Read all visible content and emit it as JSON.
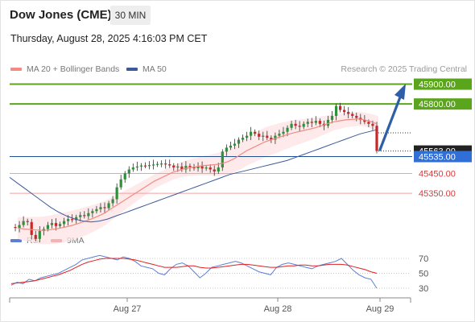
{
  "header": {
    "instrument": "Dow Jones (CME)",
    "timeframe": "30 MIN",
    "datetime": "Thursday, August 28, 2025 4:16:03 PM CET"
  },
  "legend": {
    "items": [
      {
        "label": "MA 20 + Bollinger Bands",
        "color": "#f28b82"
      },
      {
        "label": "MA 50",
        "color": "#3c5a99"
      }
    ],
    "credit": "Research © 2025 Trading Central"
  },
  "levels": [
    {
      "value": "45900.00",
      "kind": "target",
      "color": "#5aa51b"
    },
    {
      "value": "45800.00",
      "kind": "target",
      "color": "#5aa51b"
    },
    {
      "value": "45563.00",
      "kind": "last-price",
      "color": "#333333"
    },
    {
      "value": "45535.00",
      "kind": "pivot",
      "color": "#2f6fd6"
    },
    {
      "value": "45450.00",
      "kind": "support",
      "color": "#d93a3a"
    },
    {
      "value": "45350.00",
      "kind": "support",
      "color": "#d93a3a"
    }
  ],
  "rsi": {
    "legend": [
      {
        "label": "RSI",
        "color": "#5b7fd6"
      },
      {
        "label": "9MA",
        "color": "#e02020"
      }
    ],
    "ticks": [
      "70",
      "50",
      "30"
    ]
  },
  "xaxis": {
    "labels": [
      "Aug 27",
      "Aug 28",
      "Aug 29"
    ]
  },
  "chart_data": {
    "type": "candlestick",
    "price_levels": [
      45900,
      45800,
      45563,
      45535,
      45450,
      45350
    ],
    "price_range": [
      45130,
      45930
    ],
    "last_price": 45563,
    "x_labels": [
      "Aug 27",
      "Aug 28",
      "Aug 29"
    ],
    "close_series": [
      45180,
      45175,
      45190,
      45210,
      45205,
      45140,
      45120,
      45160,
      45170,
      45190,
      45200,
      45185,
      45195,
      45210,
      45220,
      45215,
      45230,
      45240,
      45235,
      45250,
      45260,
      45270,
      45280,
      45275,
      45300,
      45320,
      45380,
      45420,
      45450,
      45470,
      45480,
      45485,
      45490,
      45488,
      45492,
      45495,
      45498,
      45500,
      45496,
      45490,
      45480,
      45485,
      45470,
      45488,
      45482,
      45476,
      45486,
      45475,
      45480,
      45470,
      45460,
      45480,
      45560,
      45580,
      45590,
      45600,
      45620,
      45630,
      45640,
      45660,
      45650,
      45635,
      45640,
      45630,
      45620,
      45640,
      45650,
      45660,
      45680,
      45700,
      45690,
      45685,
      45700,
      45710,
      45705,
      45715,
      45700,
      45690,
      45720,
      45740,
      45790,
      45770,
      45760,
      45750,
      45740,
      45730,
      45720,
      45710,
      45700,
      45690,
      45563
    ],
    "ma20_series": [
      45175,
      45170,
      45168,
      45165,
      45163,
      45165,
      45170,
      45175,
      45182,
      45190,
      45200,
      45210,
      45222,
      45235,
      45250,
      45270,
      45290,
      45310,
      45330,
      45350,
      45370,
      45390,
      45410,
      45425,
      45440,
      45455,
      45465,
      45475,
      45480,
      45485,
      45490,
      45492,
      45495,
      45500,
      45510,
      45525,
      45545,
      45565,
      45580,
      45595,
      45610,
      45620,
      45630,
      45640,
      45650,
      45658,
      45665,
      45672,
      45680,
      45690,
      45700,
      45710,
      45715,
      45720,
      45722,
      45725,
      45720,
      45712,
      45700
    ],
    "ma50_series": [
      45430,
      45400,
      45370,
      45340,
      45310,
      45280,
      45255,
      45235,
      45220,
      45210,
      45205,
      45210,
      45220,
      45235,
      45250,
      45265,
      45280,
      45295,
      45310,
      45325,
      45340,
      45355,
      45370,
      45385,
      45400,
      45415,
      45430,
      45445,
      45455,
      45465,
      45475,
      45485,
      45495,
      45505,
      45515,
      45530,
      45545,
      45560,
      45575,
      45590,
      45605,
      45620,
      45635,
      45650,
      45660,
      45670
    ],
    "rsi_series": [
      34,
      38,
      36,
      42,
      40,
      44,
      46,
      48,
      50,
      54,
      58,
      62,
      68,
      70,
      72,
      74,
      72,
      70,
      68,
      72,
      70,
      66,
      60,
      58,
      56,
      50,
      48,
      56,
      62,
      64,
      60,
      52,
      44,
      50,
      58,
      60,
      62,
      64,
      66,
      64,
      60,
      56,
      52,
      50,
      48,
      58,
      62,
      64,
      62,
      60,
      58,
      56,
      60,
      62,
      64,
      66,
      70,
      62,
      54,
      48,
      44,
      42,
      30
    ],
    "rsi_ma_series": [
      36,
      37,
      38,
      39,
      40,
      42,
      44,
      46,
      48,
      51,
      54,
      58,
      62,
      65,
      67,
      69,
      70,
      70,
      70,
      70,
      69,
      68,
      66,
      64,
      62,
      60,
      58,
      58,
      58,
      59,
      60,
      60,
      58,
      57,
      57,
      58,
      59,
      60,
      61,
      62,
      62,
      61,
      60,
      59,
      58,
      58,
      59,
      60,
      60,
      61,
      61,
      60,
      60,
      61,
      62,
      62,
      62,
      61,
      59,
      57,
      55,
      52,
      50
    ],
    "rsi_ticks": [
      70,
      50,
      30
    ]
  }
}
